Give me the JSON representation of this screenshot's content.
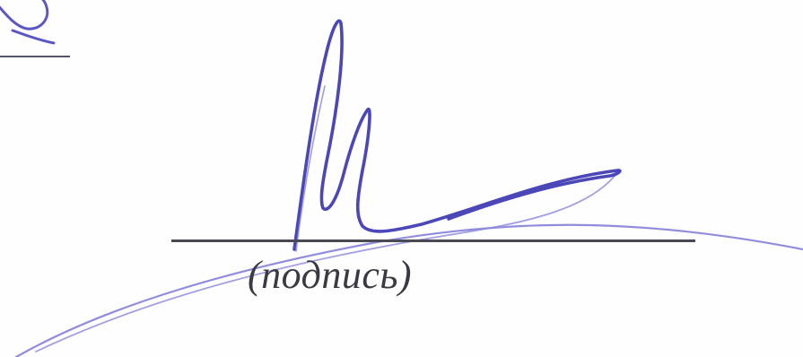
{
  "form": {
    "signature_caption": "(подпись)"
  },
  "colors": {
    "ink": "#4b47b8",
    "ink_light": "#7d79d6",
    "rule": "#4a4a55",
    "caption_text": "#3a3a42",
    "paper": "#fefefe"
  },
  "signature": {
    "present": true,
    "style": "handwritten"
  }
}
